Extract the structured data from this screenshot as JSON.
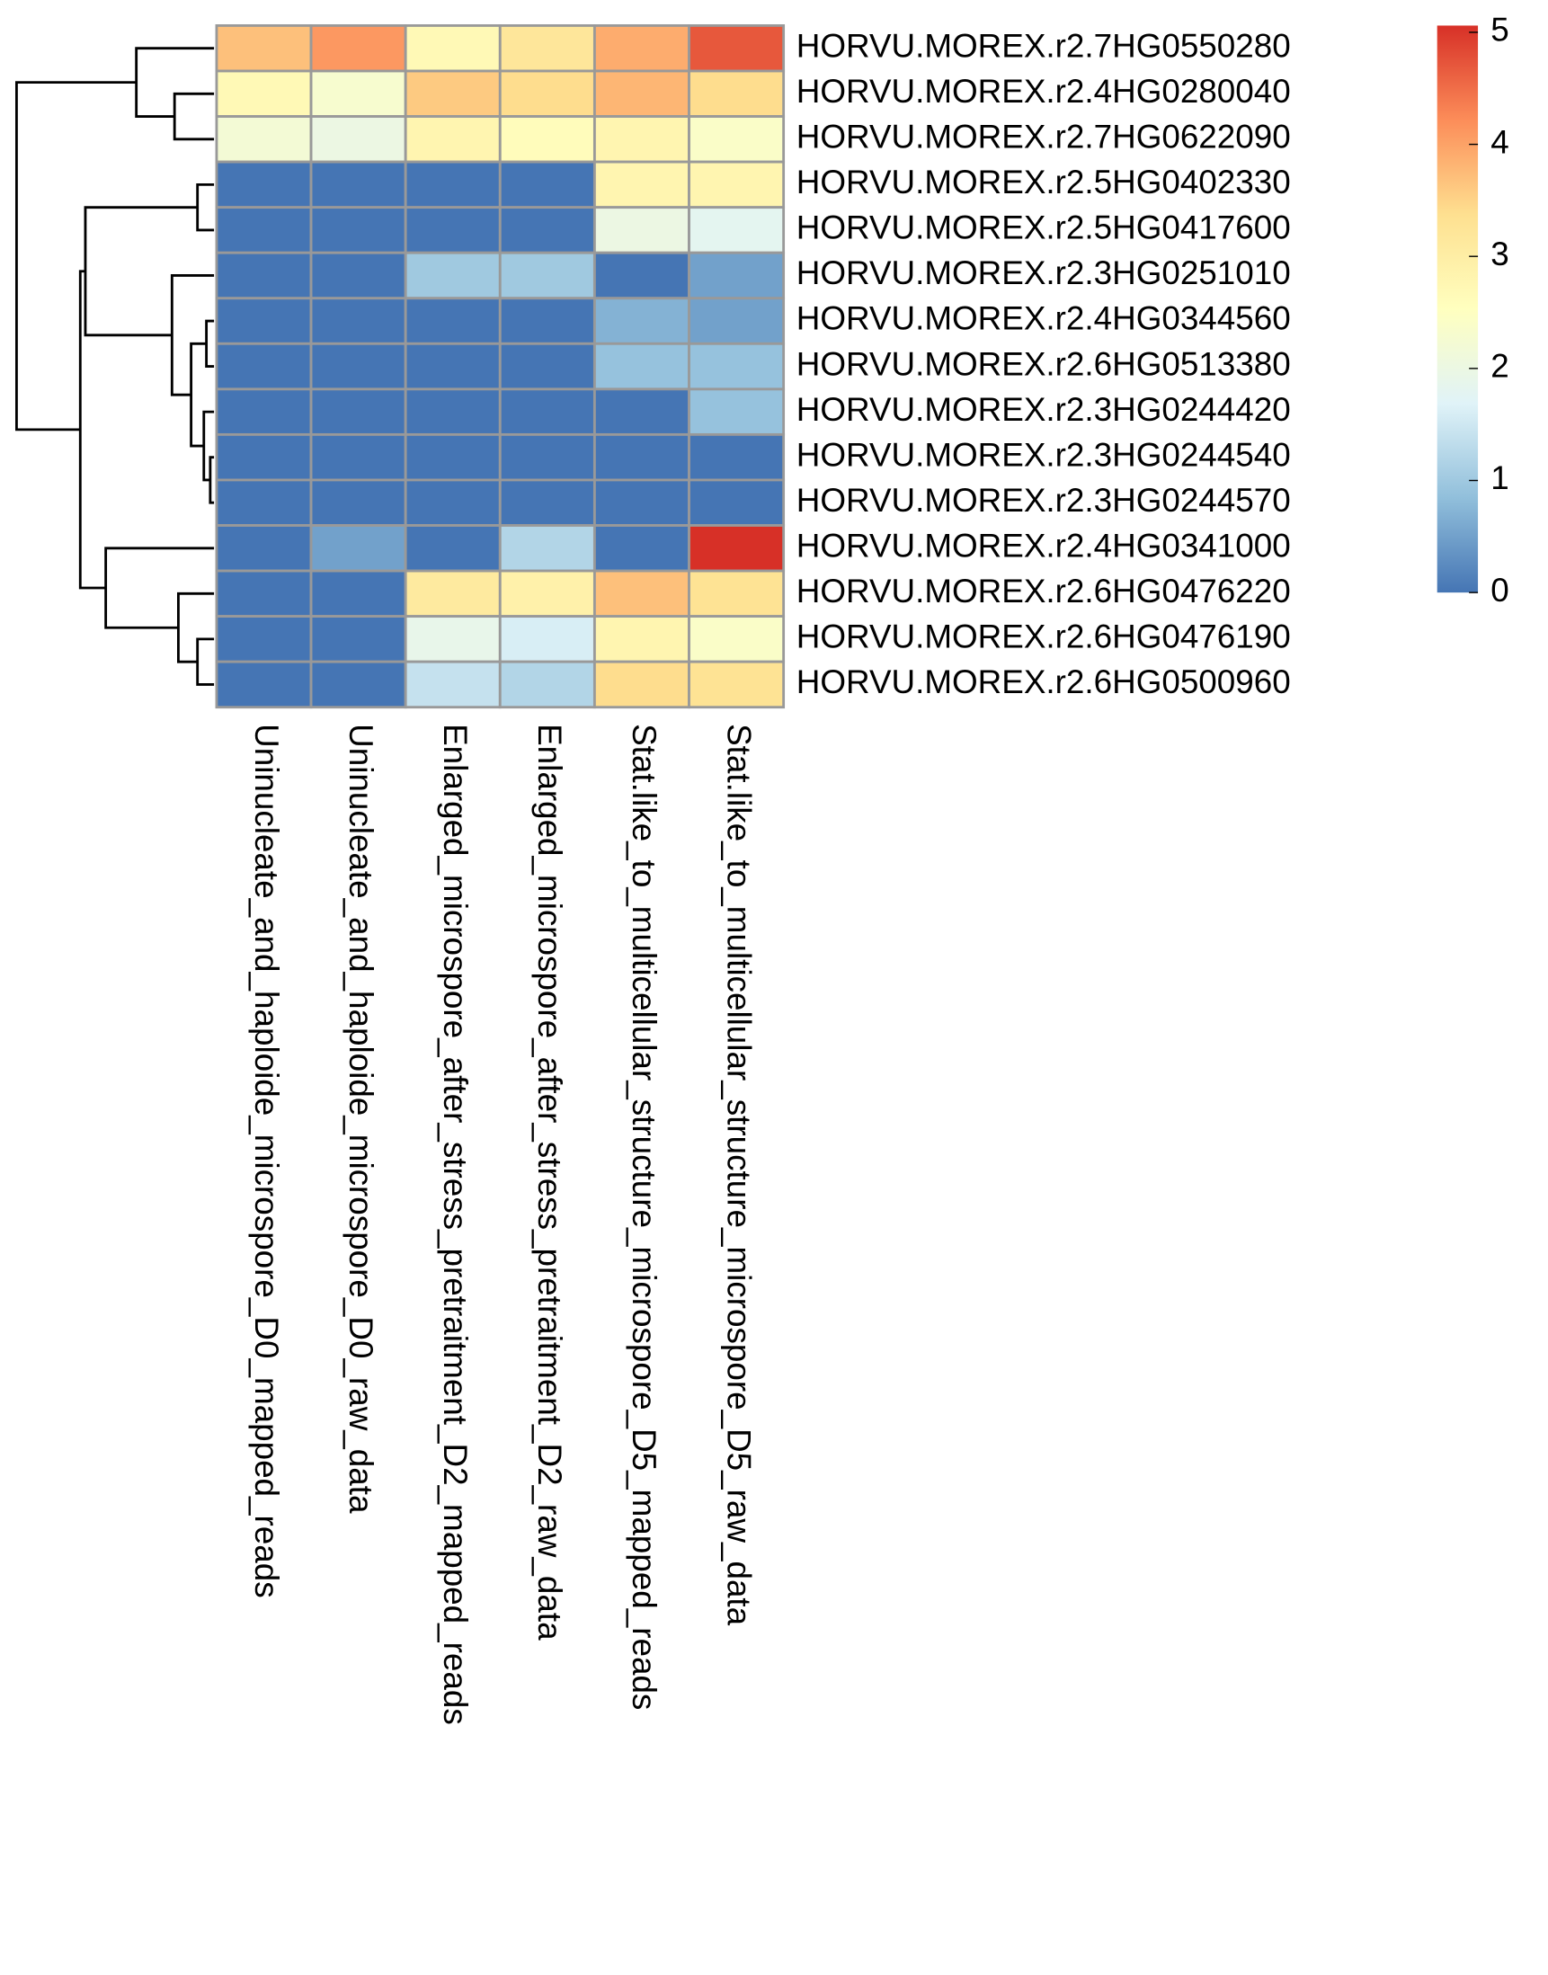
{
  "chart_data": {
    "type": "heatmap",
    "rows": [
      "HORVU.MOREX.r2.7HG0550280",
      "HORVU.MOREX.r2.4HG0280040",
      "HORVU.MOREX.r2.7HG0622090",
      "HORVU.MOREX.r2.5HG0402330",
      "HORVU.MOREX.r2.5HG0417600",
      "HORVU.MOREX.r2.3HG0251010",
      "HORVU.MOREX.r2.4HG0344560",
      "HORVU.MOREX.r2.6HG0513380",
      "HORVU.MOREX.r2.3HG0244420",
      "HORVU.MOREX.r2.3HG0244540",
      "HORVU.MOREX.r2.3HG0244570",
      "HORVU.MOREX.r2.4HG0341000",
      "HORVU.MOREX.r2.6HG0476220",
      "HORVU.MOREX.r2.6HG0476190",
      "HORVU.MOREX.r2.6HG0500960"
    ],
    "columns": [
      "Uninucleate_and_haploide_microspore_D0_mapped_reads",
      "Uninucleate_and_haploide_microspore_D0_raw_data",
      "Enlarged_microspore_after_stress_pretraitment_D2_mapped_reads",
      "Enlarged_microspore_after_stress_pretraitment_D2_raw_data",
      "Stat.like_to_multicellular_structure_microspore_D5_mapped_reads",
      "Stat.like_to_multicellular_structure_microspore_D5_raw_data"
    ],
    "values": [
      [
        3.7,
        4.1,
        2.7,
        3.2,
        3.9,
        4.7
      ],
      [
        2.7,
        2.3,
        3.6,
        3.4,
        3.8,
        3.4
      ],
      [
        2.2,
        2.0,
        2.8,
        2.6,
        2.8,
        2.4
      ],
      [
        0,
        0,
        0,
        0,
        2.8,
        2.8
      ],
      [
        0,
        0,
        0,
        0,
        2.0,
        1.8
      ],
      [
        0,
        0,
        1.0,
        1.0,
        0,
        0.5
      ],
      [
        0,
        0,
        0,
        0,
        0.7,
        0.5
      ],
      [
        0,
        0,
        0,
        0,
        0.9,
        0.9
      ],
      [
        0,
        0,
        0,
        0,
        0,
        0.9
      ],
      [
        0,
        0,
        0,
        0,
        0,
        0
      ],
      [
        0,
        0,
        0,
        0,
        0,
        0
      ],
      [
        0,
        0.5,
        0,
        1.2,
        0,
        5.1
      ],
      [
        0,
        0,
        3.1,
        2.9,
        3.7,
        3.3
      ],
      [
        0,
        0,
        1.9,
        1.6,
        2.8,
        2.4
      ],
      [
        0,
        0,
        1.4,
        1.2,
        3.4,
        3.3
      ]
    ],
    "colors": [
      "#4575b4",
      "#91bfdb",
      "#e0f3f8",
      "#ffffbf",
      "#fee090",
      "#fc8d59",
      "#d73027"
    ],
    "zlim": [
      0,
      5.06
    ],
    "zticks": [
      0,
      1,
      2,
      3,
      4,
      5
    ]
  }
}
